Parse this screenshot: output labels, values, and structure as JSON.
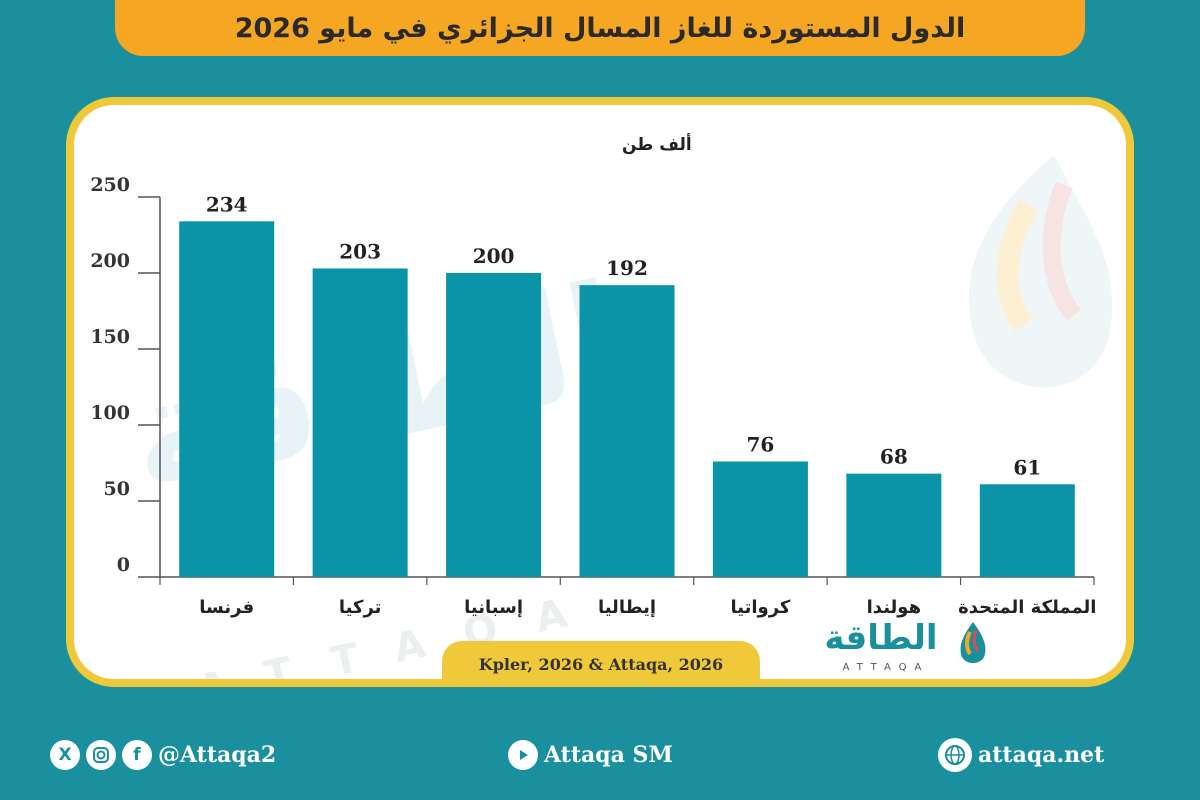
{
  "header": {
    "title": "الدول المستوردة للغاز المسال الجزائري في مايو 2026"
  },
  "source": "Kpler, 2026 & Attaqa, 2026",
  "logo": {
    "word": "الطاقة",
    "sub": "ATTAQA"
  },
  "footer": {
    "social_handle": "@Attaqa2",
    "youtube": "Attaqa SM",
    "website": "attaqa.net",
    "icons": [
      "x-icon",
      "instagram-icon",
      "facebook-icon",
      "youtube-icon",
      "globe-icon"
    ]
  },
  "colors": {
    "bar": "#0b93a8",
    "background": "#1a8f9e",
    "title_bar": "#f5a623",
    "frame": "#f0c93a"
  },
  "chart_data": {
    "type": "bar",
    "title": "الدول المستوردة للغاز المسال الجزائري في مايو 2026",
    "ylabel": "ألف طن",
    "xlabel": "",
    "categories": [
      "فرنسا",
      "تركيا",
      "إسبانيا",
      "إيطاليا",
      "كرواتيا",
      "هولندا",
      "المملكة المتحدة"
    ],
    "values": [
      234,
      203,
      200,
      192,
      76,
      68,
      61
    ],
    "ylim": [
      0,
      250
    ],
    "yticks": [
      0,
      50,
      100,
      150,
      200,
      250
    ],
    "grid": false,
    "data_labels": true
  }
}
